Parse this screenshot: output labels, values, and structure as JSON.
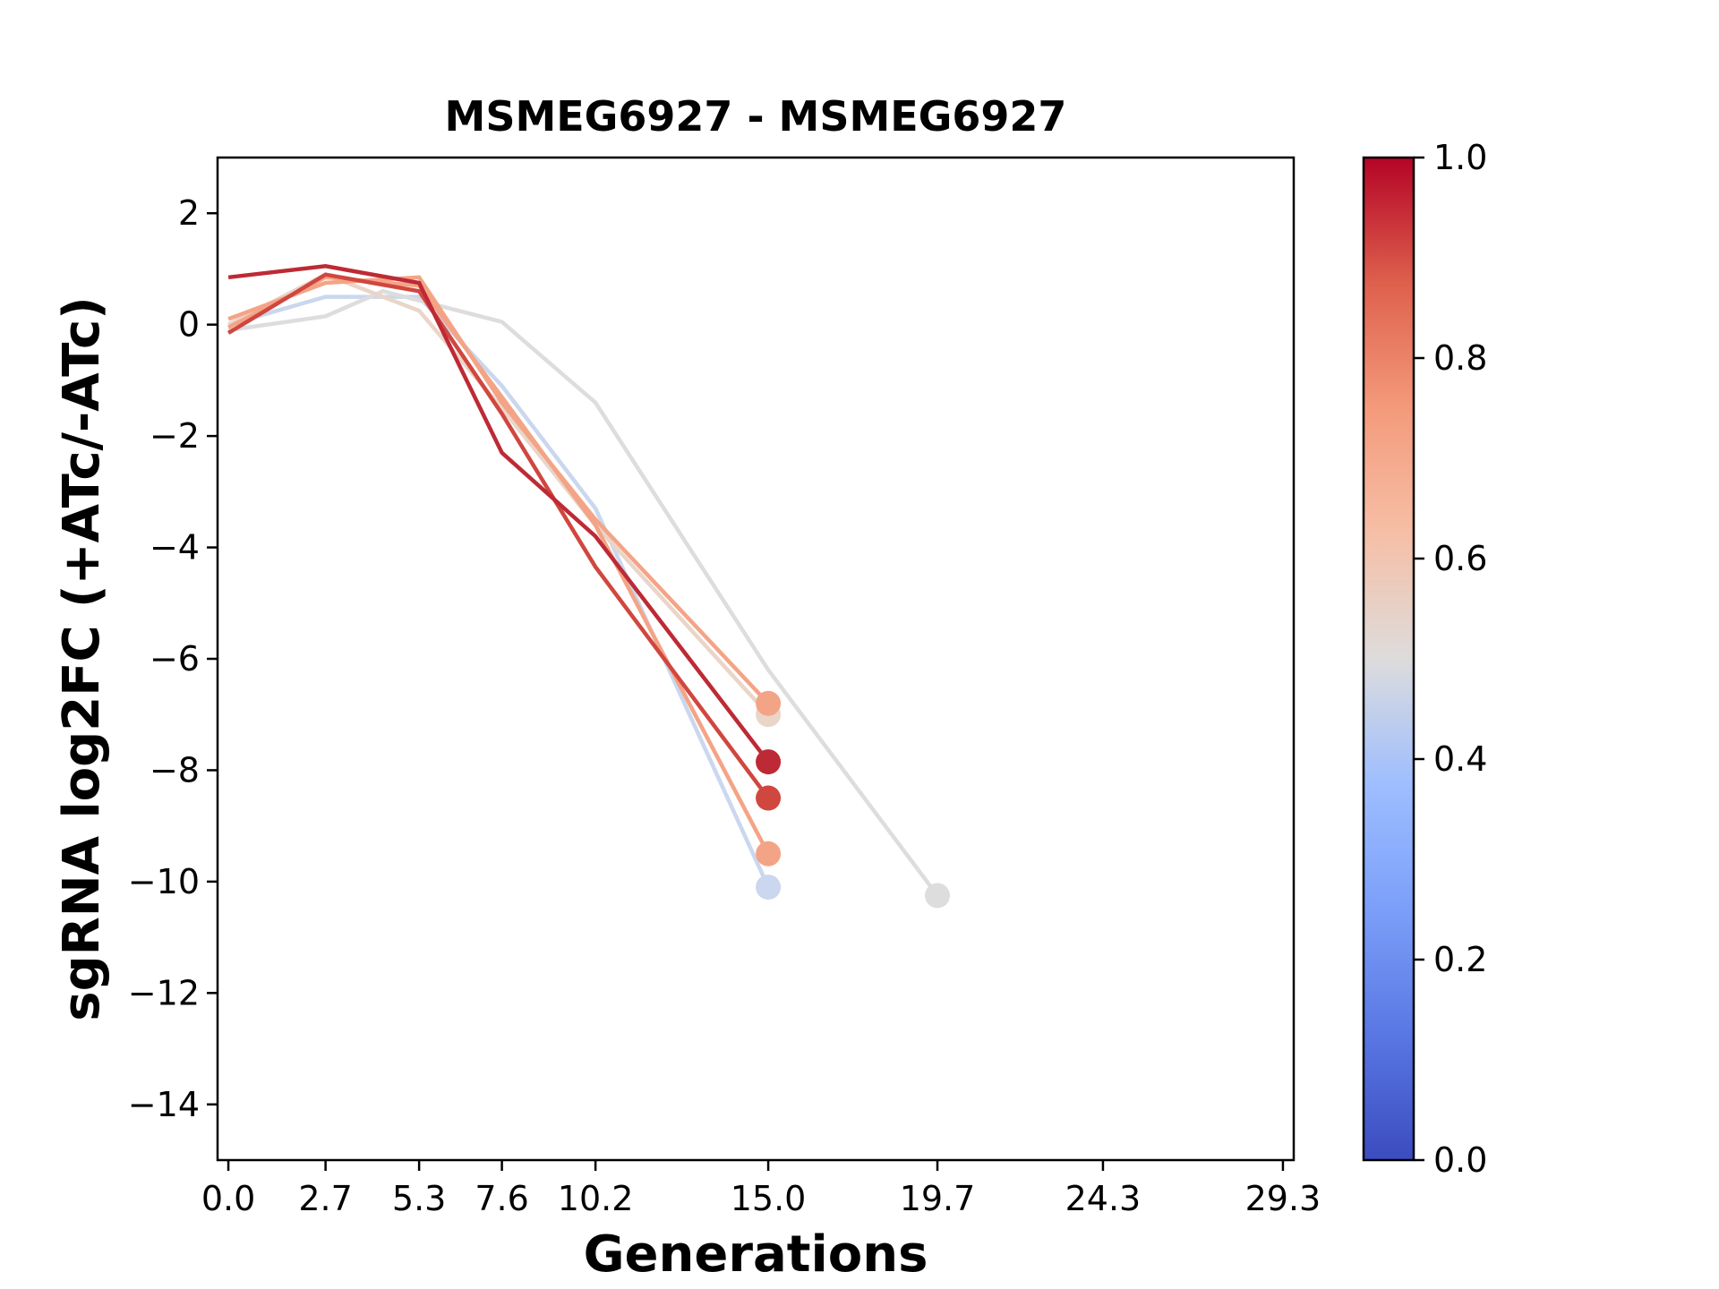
{
  "chart_data": {
    "type": "line",
    "title": "MSMEG6927 - MSMEG6927",
    "xlabel": "Generations",
    "ylabel": "sgRNA log2FC (+ATc/-ATc)",
    "xlim": [
      -0.3,
      29.6
    ],
    "ylim": [
      -15,
      3
    ],
    "x_ticks": [
      0.0,
      2.7,
      5.3,
      7.6,
      10.2,
      15.0,
      19.7,
      24.3,
      29.3
    ],
    "x_tick_labels": [
      "0.0",
      "2.7",
      "5.3",
      "7.6",
      "10.2",
      "15.0",
      "19.7",
      "24.3",
      "29.3"
    ],
    "y_ticks": [
      2,
      0,
      -2,
      -4,
      -6,
      -8,
      -10,
      -12,
      -14
    ],
    "y_tick_labels": [
      "2",
      "0",
      "−2",
      "−4",
      "−6",
      "−8",
      "−10",
      "−12",
      "−14"
    ],
    "grid": false,
    "colormap": {
      "name": "coolwarm",
      "range": [
        0.0,
        1.0
      ],
      "ticks": [
        0.0,
        0.2,
        0.4,
        0.6,
        0.8,
        1.0
      ],
      "tick_labels": [
        "0.0",
        "0.2",
        "0.4",
        "0.6",
        "0.8",
        "1.0"
      ]
    },
    "series": [
      {
        "color_value": 0.45,
        "color": "#cad7ee",
        "x": [
          0.0,
          2.7,
          5.3,
          7.6,
          10.2,
          15.0
        ],
        "y": [
          0.0,
          0.5,
          0.5,
          -1.1,
          -3.3,
          -10.1
        ]
      },
      {
        "color_value": 0.5,
        "color": "#dddddd",
        "x": [
          0.0,
          2.7,
          4.3,
          7.6,
          10.2,
          15.0,
          19.7
        ],
        "y": [
          -0.1,
          0.15,
          0.6,
          0.05,
          -1.4,
          -6.2,
          -10.25
        ]
      },
      {
        "color_value": 0.6,
        "color": "#ead5c9",
        "x": [
          0.0,
          2.7,
          5.3,
          7.6,
          10.2,
          15.0
        ],
        "y": [
          0.0,
          0.9,
          0.25,
          -1.5,
          -3.6,
          -7.0
        ]
      },
      {
        "color_value": 0.72,
        "color": "#f4a486",
        "x": [
          0.0,
          2.7,
          5.3,
          7.6,
          10.2,
          15.0
        ],
        "y": [
          0.1,
          0.75,
          0.85,
          -1.4,
          -3.5,
          -6.8
        ]
      },
      {
        "color_value": 0.72,
        "color": "#f4a486",
        "x": [
          0.0,
          2.7,
          5.3,
          7.6,
          10.2,
          15.0
        ],
        "y": [
          -0.05,
          0.85,
          0.7,
          -1.3,
          -3.6,
          -9.5
        ]
      },
      {
        "color_value": 0.9,
        "color": "#d0473f",
        "x": [
          0.0,
          2.7,
          5.3,
          7.6,
          10.2,
          15.0
        ],
        "y": [
          -0.15,
          0.9,
          0.6,
          -1.6,
          -4.35,
          -8.5
        ]
      },
      {
        "color_value": 0.96,
        "color": "#bd2a35",
        "x": [
          0.0,
          2.7,
          5.3,
          7.6,
          10.2,
          15.0
        ],
        "y": [
          0.85,
          1.05,
          0.75,
          -2.3,
          -3.8,
          -7.85
        ]
      }
    ]
  }
}
